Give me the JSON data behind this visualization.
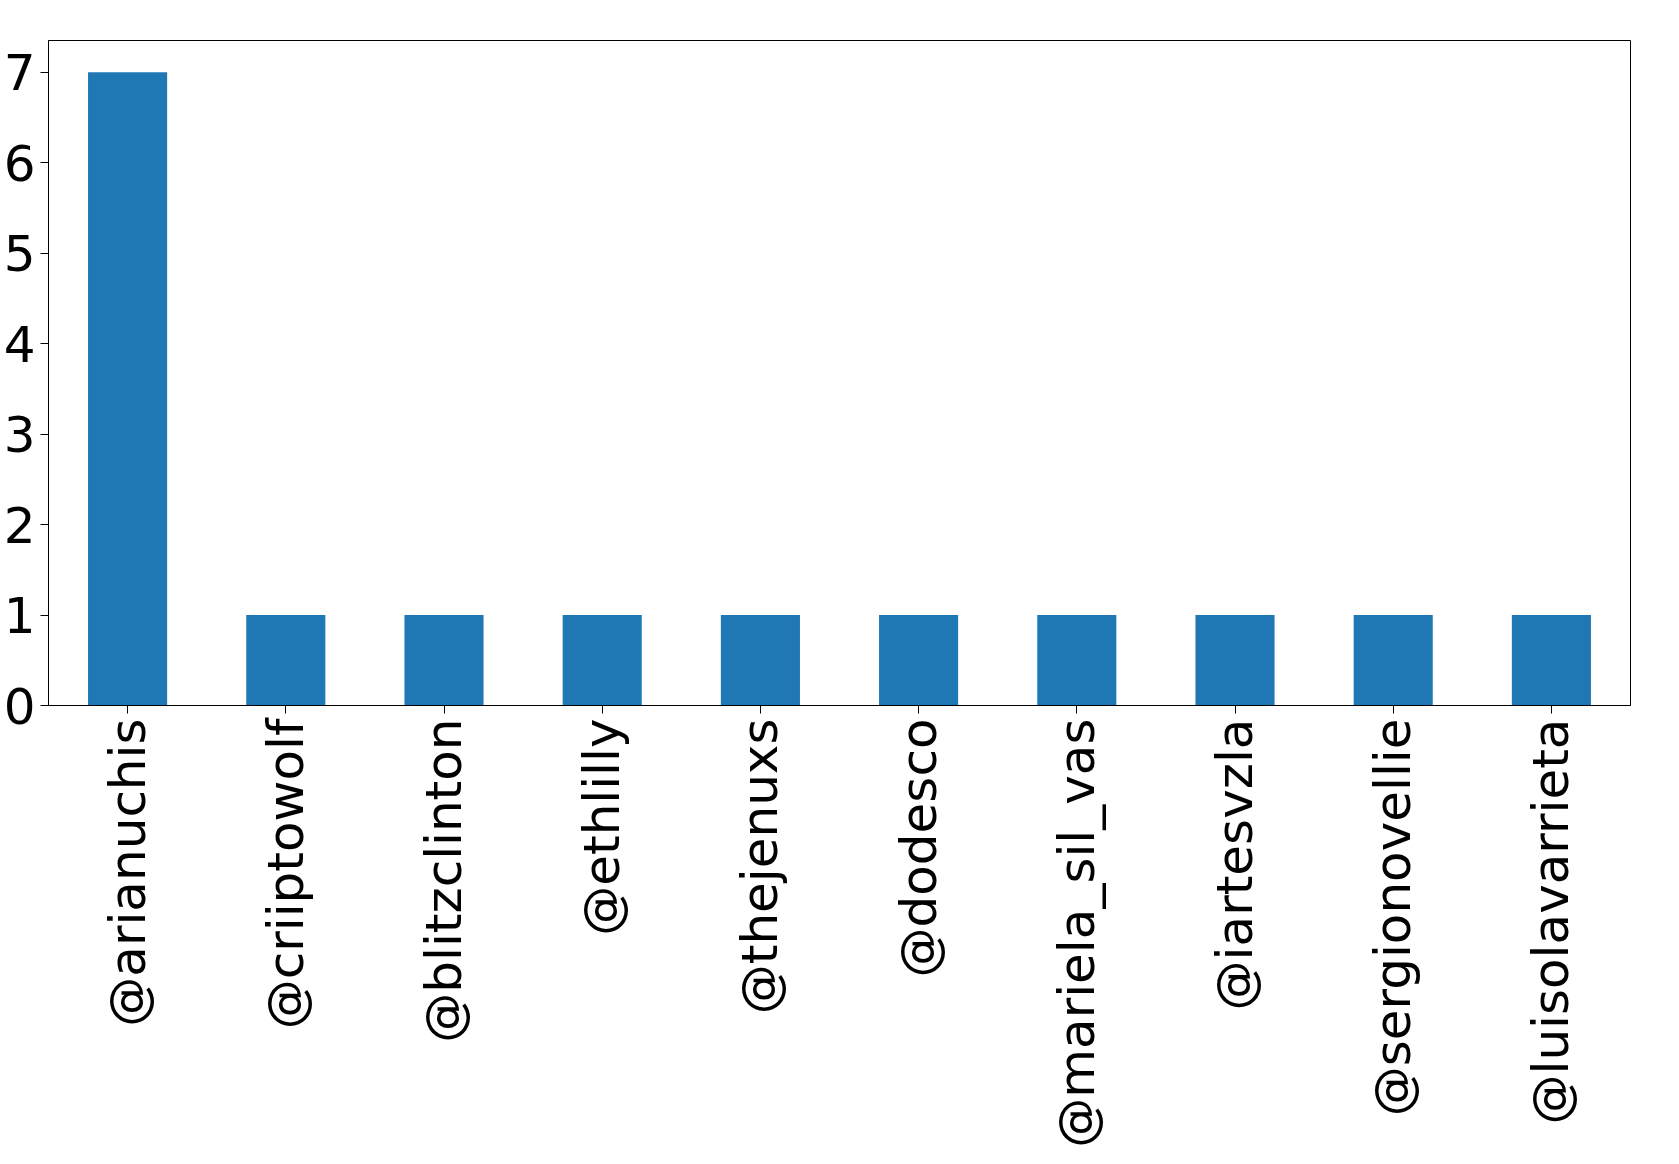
{
  "chart_data": {
    "type": "bar",
    "categories": [
      "@arianuchis",
      "@criiptowolf",
      "@blitzclinton",
      "@ethlilly",
      "@thejenuxs",
      "@dodesco",
      "@mariela_sil_vas",
      "@iartesvzla",
      "@sergionovellie",
      "@luisolavarrieta"
    ],
    "values": [
      7,
      1,
      1,
      1,
      1,
      1,
      1,
      1,
      1,
      1
    ],
    "color": "#1f77b4",
    "ylim": [
      0,
      7.35
    ],
    "yticks": [
      0,
      1,
      2,
      3,
      4,
      5,
      6,
      7
    ],
    "grid": false
  }
}
